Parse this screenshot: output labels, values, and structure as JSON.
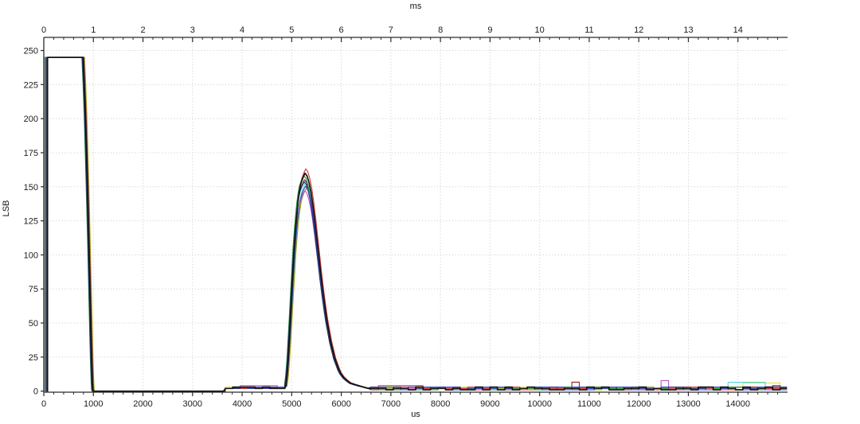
{
  "figure": {
    "background": "#ffffff",
    "axis_color": "#2b2b2b",
    "grid_color": "#c9c9c9",
    "tick_label_color": "#1c1c1c"
  },
  "chart_data": {
    "type": "line",
    "title": "",
    "xlabel": "us",
    "x2label": "ms",
    "ylabel": "LSB",
    "xlim": [
      0,
      15000
    ],
    "x2lim": [
      0,
      15
    ],
    "ylim": [
      0,
      250
    ],
    "grid": true,
    "legend": "none",
    "axes": {
      "bottom": {
        "title": "us",
        "major_step": 1000,
        "minor_step": 200,
        "tick_labels": [
          "0",
          "1000",
          "2000",
          "3000",
          "4000",
          "5000",
          "6000",
          "7000",
          "8000",
          "9000",
          "10000",
          "11000",
          "12000",
          "13000",
          "14000"
        ]
      },
      "top": {
        "title": "ms",
        "major_step": 1,
        "minor_step": 0.2,
        "tick_labels": [
          "0",
          "1",
          "2",
          "3",
          "4",
          "5",
          "6",
          "7",
          "8",
          "9",
          "10",
          "11",
          "12",
          "13",
          "14"
        ]
      },
      "left": {
        "title": "LSB",
        "major_step": 25,
        "tick_labels": [
          "0",
          "25",
          "50",
          "75",
          "100",
          "125",
          "150",
          "175",
          "200",
          "225",
          "250"
        ]
      }
    },
    "pulse": {
      "rise_at_us": 0,
      "plateau_level": 245,
      "plateau_end_us": 795,
      "fall_curve": [
        [
          795,
          244
        ],
        [
          815,
          228
        ],
        [
          840,
          203
        ],
        [
          865,
          172
        ],
        [
          890,
          138
        ],
        [
          915,
          100
        ],
        [
          938,
          64
        ],
        [
          958,
          34
        ],
        [
          972,
          16
        ],
        [
          982,
          6
        ],
        [
          990,
          1
        ]
      ]
    },
    "zero_run": {
      "from": 1000,
      "to": 3640,
      "level": 0
    },
    "pre_peak_plateau": {
      "from": 3660,
      "to": 4860,
      "level": 2.5
    },
    "peak_curve": [
      [
        4880,
        4
      ],
      [
        4905,
        12
      ],
      [
        4930,
        24
      ],
      [
        4955,
        40
      ],
      [
        4980,
        57
      ],
      [
        5005,
        74
      ],
      [
        5030,
        91
      ],
      [
        5055,
        107
      ],
      [
        5080,
        120
      ],
      [
        5105,
        131
      ],
      [
        5130,
        140
      ],
      [
        5160,
        148
      ],
      [
        5190,
        153
      ],
      [
        5230,
        157
      ],
      [
        5270,
        160
      ],
      [
        5310,
        158
      ],
      [
        5350,
        153
      ],
      [
        5390,
        146
      ],
      [
        5430,
        136
      ],
      [
        5470,
        124
      ],
      [
        5510,
        111
      ],
      [
        5550,
        98
      ],
      [
        5590,
        85
      ],
      [
        5630,
        73
      ],
      [
        5670,
        62
      ],
      [
        5710,
        52
      ],
      [
        5750,
        44
      ],
      [
        5790,
        36
      ],
      [
        5830,
        30
      ],
      [
        5870,
        24
      ],
      [
        5910,
        20
      ],
      [
        5950,
        16
      ],
      [
        5990,
        13
      ],
      [
        6050,
        10
      ],
      [
        6110,
        8
      ],
      [
        6180,
        6
      ],
      [
        6260,
        5
      ],
      [
        6350,
        4
      ],
      [
        6450,
        3
      ],
      [
        6550,
        2
      ]
    ],
    "baseline_tail": {
      "from": 6600,
      "to": 14980,
      "level_min": 1,
      "level_max": 3
    },
    "series": [
      {
        "name": "trace-yellow",
        "color": "#e3e34a",
        "dx": 30,
        "peak_scale": 0.95,
        "width": 1.1,
        "bumps": [
          {
            "x0": 14150,
            "x1": 14880,
            "h": 6,
            "shape": "plateau"
          }
        ]
      },
      {
        "name": "trace-cyan",
        "color": "#4fd6de",
        "dx": 18,
        "peak_scale": 0.96,
        "width": 1.1,
        "bumps": [
          {
            "x0": 13840,
            "x1": 14560,
            "h": 6.5,
            "shape": "plateau"
          }
        ]
      },
      {
        "name": "trace-olive",
        "color": "#96a01e",
        "dx": 25,
        "peak_scale": 0.93,
        "width": 1.1,
        "bumps": []
      },
      {
        "name": "trace-magenta",
        "color": "#c44fc9",
        "dx": -6,
        "peak_scale": 0.92,
        "width": 1.1,
        "bumps": [
          {
            "x0": 3900,
            "x1": 4780,
            "h": 4,
            "shape": "plateau"
          },
          {
            "x0": 12380,
            "x1": 12660,
            "h": 8,
            "shape": "spike"
          }
        ]
      },
      {
        "name": "trace-darkred",
        "color": "#8c1f1f",
        "dx": -12,
        "peak_scale": 0.97,
        "width": 1.1,
        "bumps": [
          {
            "x0": 10620,
            "x1": 10790,
            "h": 8,
            "shape": "spike"
          }
        ]
      },
      {
        "name": "trace-red",
        "color": "#d23535",
        "dx": 14,
        "peak_scale": 1.02,
        "width": 1.1,
        "bumps": [
          {
            "x0": 6800,
            "x1": 7600,
            "h": 4,
            "shape": "plateau"
          }
        ]
      },
      {
        "name": "trace-green",
        "color": "#1f8c2d",
        "dx": -26,
        "peak_scale": 0.99,
        "width": 1.1,
        "bumps": []
      },
      {
        "name": "trace-navy",
        "color": "#27307d",
        "dx": -18,
        "peak_scale": 0.96,
        "width": 1.1,
        "bumps": [
          {
            "x0": 14640,
            "x1": 14900,
            "h": 4,
            "shape": "plateau"
          }
        ]
      },
      {
        "name": "trace-blue",
        "color": "#2e46c8",
        "dx": 7,
        "peak_scale": 0.94,
        "width": 1.1,
        "bumps": [
          {
            "x0": 6330,
            "x1": 6490,
            "h": 7,
            "shape": "spike"
          }
        ]
      },
      {
        "name": "trace-black",
        "color": "#141414",
        "dx": 0,
        "peak_scale": 1.0,
        "width": 1.7,
        "bumps": []
      }
    ]
  }
}
